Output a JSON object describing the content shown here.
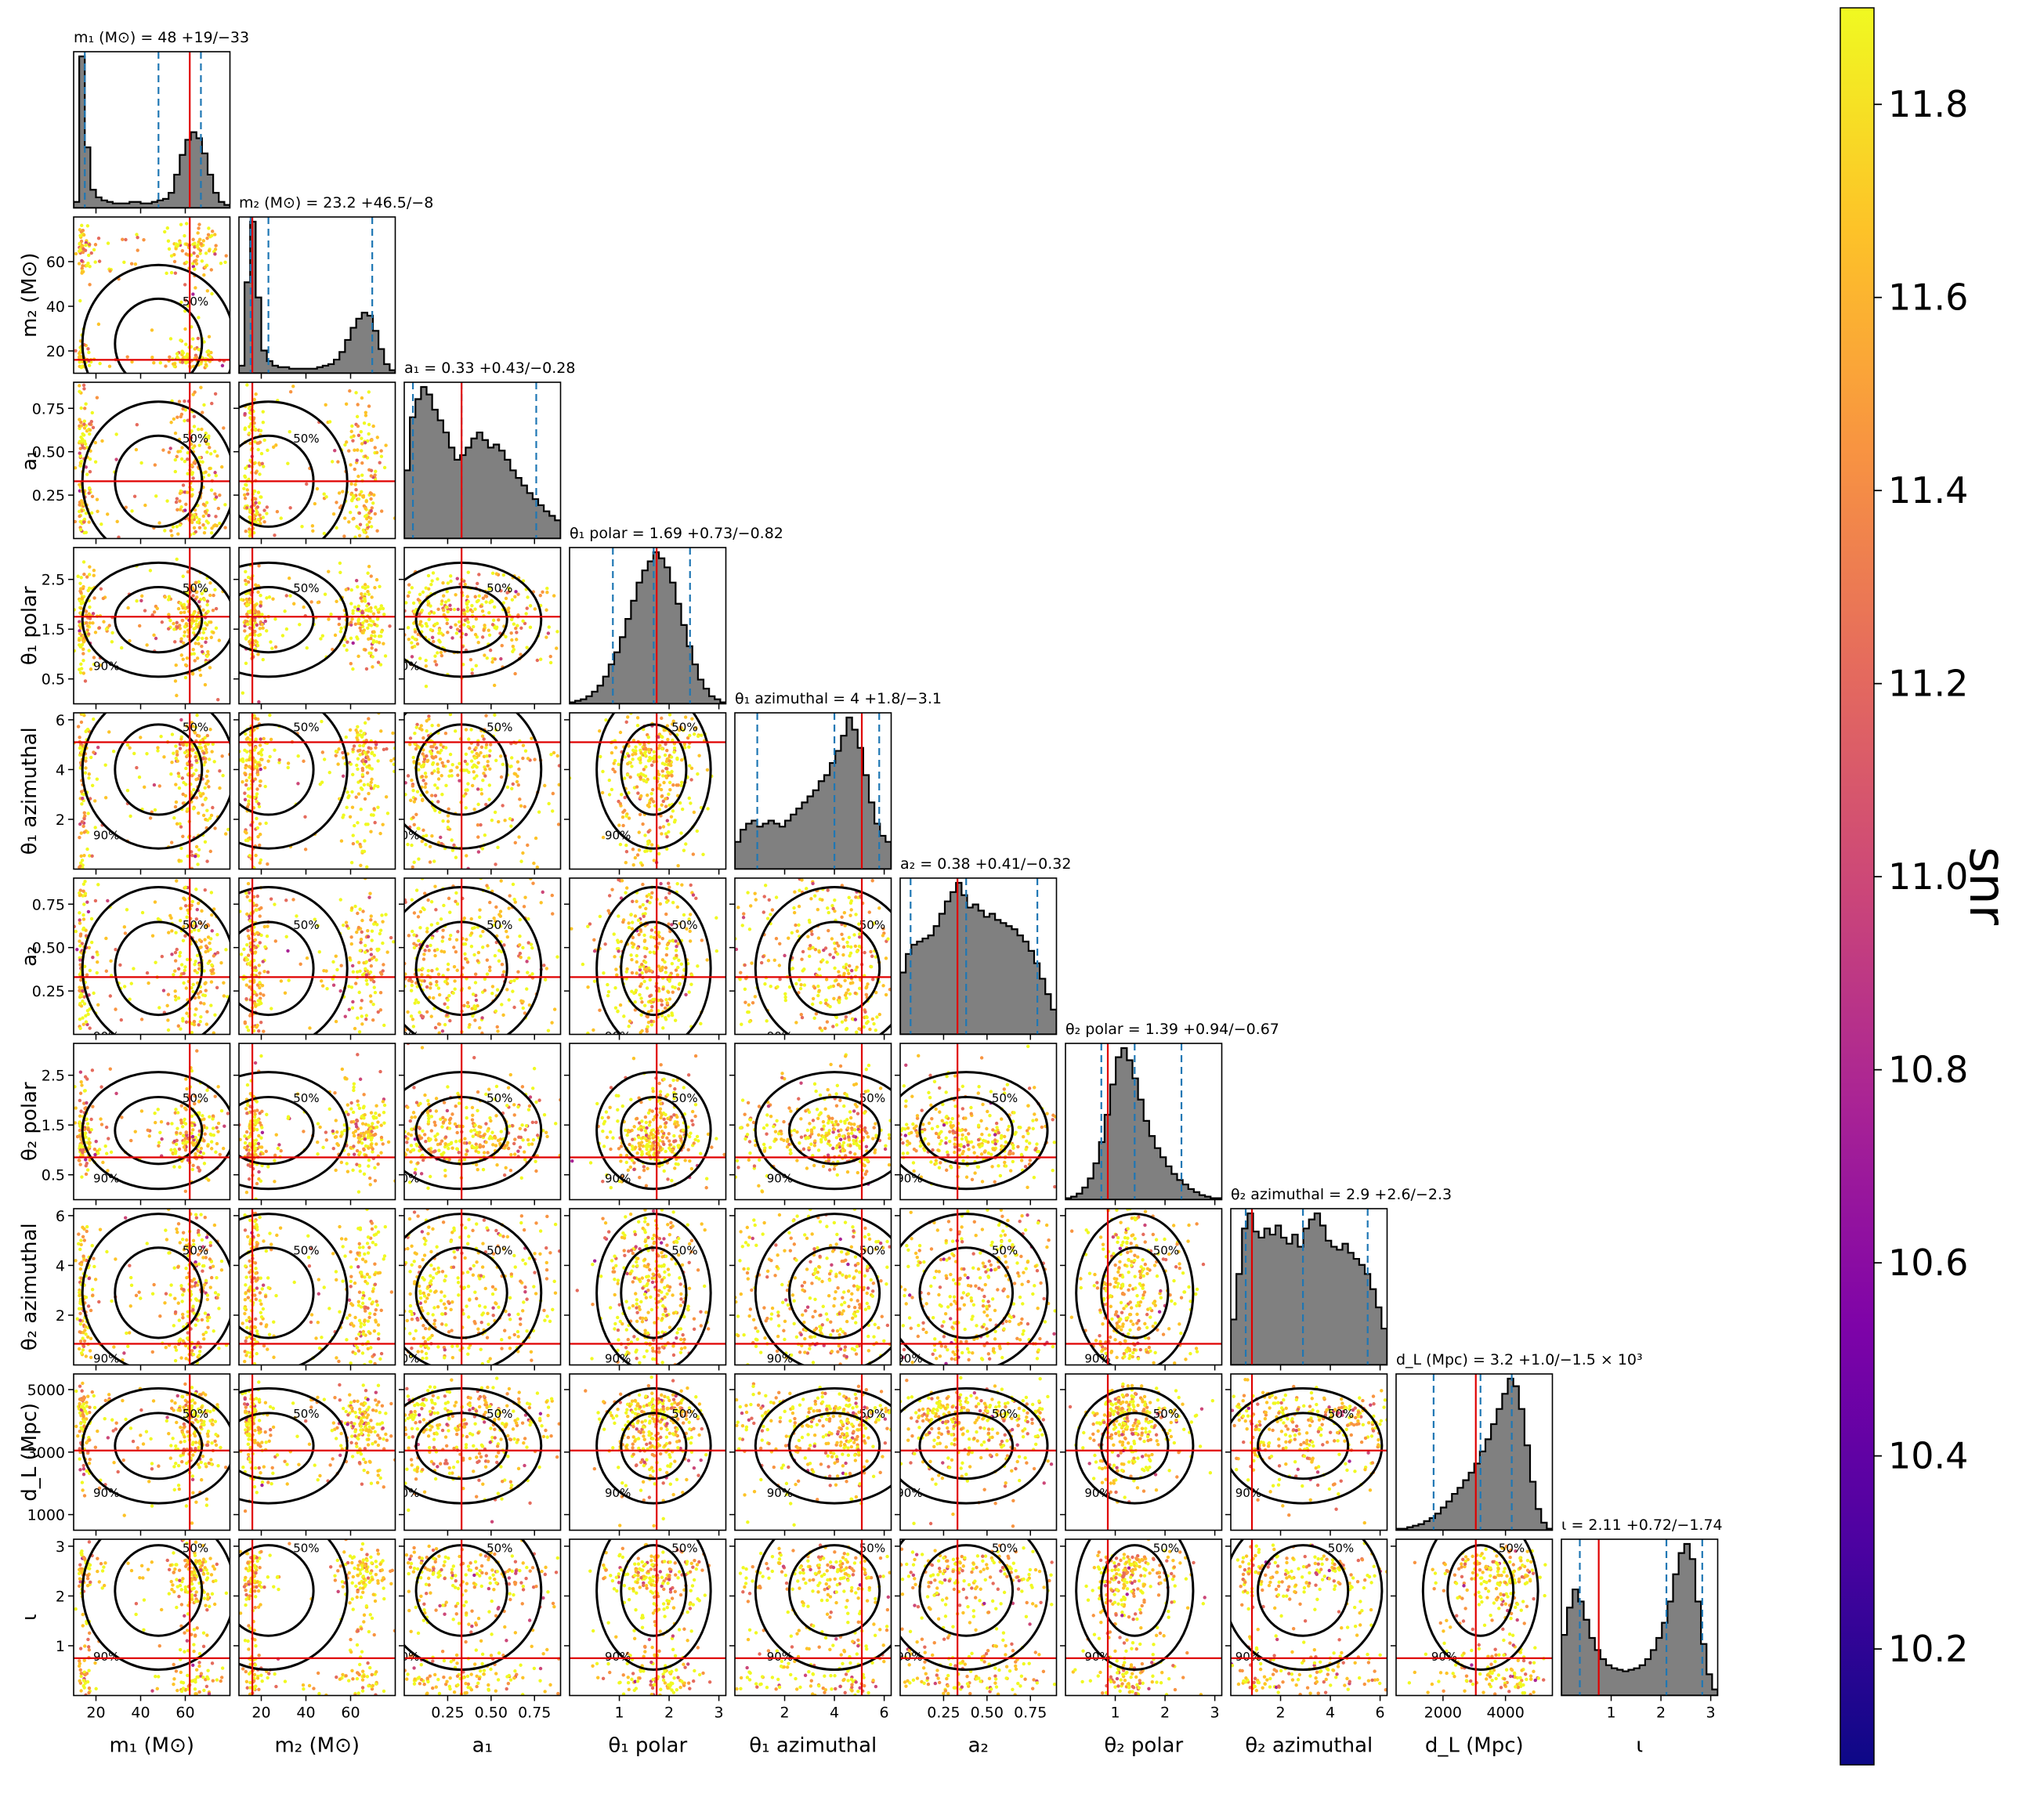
{
  "chart_data": {
    "type": "corner",
    "parameters": [
      {
        "key": "m1",
        "label": "m₁ (M⊙)",
        "xlabel": "m₁ (M⊙)",
        "title": "m₁ (M⊙) = 48 +19/−33",
        "range": [
          10,
          80
        ],
        "ticks": [
          20,
          40,
          60
        ],
        "median": 48,
        "lower": 15,
        "upper": 67,
        "truth": 62,
        "hist": [
          4,
          100,
          40,
          12,
          7,
          5,
          4,
          3,
          3,
          3,
          4,
          4,
          3,
          3,
          4,
          5,
          6,
          10,
          22,
          35,
          45,
          50,
          46,
          36,
          22,
          10,
          4,
          2
        ]
      },
      {
        "key": "m2",
        "label": "m₂ (M⊙)",
        "xlabel": "m₂ (M⊙)",
        "title": "m₂ (M⊙) = 23.2 +46.5/−8",
        "range": [
          10,
          80
        ],
        "ticks": [
          20,
          40,
          60
        ],
        "median": 23.2,
        "lower": 15.2,
        "upper": 69.7,
        "truth": 16,
        "hist": [
          5,
          60,
          100,
          50,
          15,
          8,
          5,
          4,
          4,
          3,
          3,
          3,
          3,
          3,
          4,
          5,
          6,
          9,
          14,
          22,
          30,
          36,
          40,
          38,
          28,
          16,
          6,
          2
        ]
      },
      {
        "key": "a1",
        "label": "a₁",
        "xlabel": "a₁",
        "title": "a₁ = 0.33 +0.43/−0.28",
        "range": [
          0.0,
          0.9
        ],
        "ticks": [
          0.25,
          0.5,
          0.75
        ],
        "tickLabels": [
          "0.25",
          "0.50",
          "0.75"
        ],
        "median": 0.33,
        "lower": 0.05,
        "upper": 0.76,
        "truth": 0.33,
        "hist": [
          45,
          80,
          92,
          100,
          95,
          85,
          78,
          70,
          60,
          52,
          55,
          60,
          66,
          70,
          65,
          60,
          62,
          58,
          52,
          45,
          40,
          35,
          30,
          26,
          22,
          18,
          15,
          12
        ]
      },
      {
        "key": "theta1p",
        "label": "θ₁ polar",
        "xlabel": "θ₁ polar",
        "title": "θ₁ polar = 1.69 +0.73/−0.82",
        "range": [
          0,
          3.14
        ],
        "ticks": [
          1,
          2,
          3
        ],
        "yticks": [
          0.5,
          1.5,
          2.5
        ],
        "median": 1.69,
        "lower": 0.87,
        "upper": 2.42,
        "truth": 1.75,
        "hist": [
          1,
          2,
          3,
          5,
          8,
          12,
          18,
          26,
          34,
          44,
          56,
          68,
          80,
          88,
          94,
          100,
          96,
          90,
          80,
          66,
          52,
          38,
          26,
          16,
          10,
          5,
          3,
          1
        ]
      },
      {
        "key": "theta1a",
        "label": "θ₁ azimuthal",
        "xlabel": "θ₁ azimuthal",
        "title": "θ₁ azimuthal = 4 +1.8/−3.1",
        "range": [
          0,
          6.28
        ],
        "ticks": [
          2,
          4,
          6
        ],
        "median": 4,
        "lower": 0.9,
        "upper": 5.8,
        "truth": 5.1,
        "hist": [
          18,
          26,
          30,
          32,
          28,
          30,
          32,
          30,
          28,
          32,
          36,
          40,
          44,
          48,
          52,
          58,
          62,
          70,
          78,
          88,
          100,
          92,
          80,
          62,
          44,
          30,
          22,
          18
        ]
      },
      {
        "key": "a2",
        "label": "a₂",
        "xlabel": "a₂",
        "title": "a₂ = 0.38 +0.41/−0.32",
        "range": [
          0.0,
          0.9
        ],
        "ticks": [
          0.25,
          0.5,
          0.75
        ],
        "tickLabels": [
          "0.25",
          "0.50",
          "0.75"
        ],
        "median": 0.38,
        "lower": 0.06,
        "upper": 0.79,
        "truth": 0.33,
        "hist": [
          40,
          52,
          58,
          60,
          62,
          64,
          70,
          78,
          86,
          92,
          98,
          90,
          82,
          84,
          80,
          76,
          78,
          74,
          72,
          70,
          68,
          64,
          60,
          54,
          46,
          36,
          26,
          16
        ]
      },
      {
        "key": "theta2p",
        "label": "θ₂ polar",
        "xlabel": "θ₂ polar",
        "title": "θ₂ polar = 1.39 +0.94/−0.67",
        "range": [
          0,
          3.14
        ],
        "ticks": [
          1,
          2,
          3
        ],
        "yticks": [
          0.5,
          1.5,
          2.5
        ],
        "median": 1.39,
        "lower": 0.72,
        "upper": 2.33,
        "truth": 0.85,
        "hist": [
          1,
          2,
          4,
          8,
          14,
          24,
          38,
          56,
          76,
          94,
          100,
          92,
          80,
          66,
          52,
          42,
          34,
          28,
          22,
          17,
          13,
          10,
          7,
          5,
          3,
          2,
          1,
          1
        ]
      },
      {
        "key": "theta2a",
        "label": "θ₂ azimuthal",
        "xlabel": "θ₂ azimuthal",
        "title": "θ₂ azimuthal = 2.9 +2.6/−2.3",
        "range": [
          0,
          6.28
        ],
        "ticks": [
          2,
          4,
          6
        ],
        "median": 2.9,
        "lower": 0.6,
        "upper": 5.5,
        "truth": 0.85,
        "hist": [
          30,
          60,
          90,
          100,
          88,
          84,
          90,
          86,
          92,
          84,
          80,
          86,
          78,
          90,
          96,
          100,
          92,
          82,
          78,
          76,
          80,
          74,
          70,
          66,
          60,
          50,
          38,
          24
        ]
      },
      {
        "key": "dL",
        "label": "d_L (Mpc)",
        "xlabel": "d_L (Mpc)",
        "title": "d_L (Mpc) = 3.2 +1.0/−1.5 × 10³",
        "range": [
          500,
          5500
        ],
        "ticks": [
          2000,
          4000
        ],
        "yticks": [
          1000,
          3000,
          5000
        ],
        "median": 3200,
        "lower": 1700,
        "upper": 4200,
        "truth": 3050,
        "hist": [
          1,
          1,
          2,
          3,
          4,
          6,
          8,
          11,
          15,
          19,
          24,
          28,
          33,
          38,
          44,
          52,
          60,
          70,
          80,
          90,
          100,
          95,
          80,
          56,
          32,
          14,
          5,
          1
        ]
      },
      {
        "key": "iota",
        "label": "ι",
        "xlabel": "ι",
        "title": "ι = 2.11 +0.72/−1.74",
        "range": [
          0,
          3.14
        ],
        "ticks": [
          1,
          2,
          3
        ],
        "median": 2.11,
        "lower": 0.37,
        "upper": 2.83,
        "truth": 0.75,
        "hist": [
          40,
          58,
          70,
          62,
          50,
          38,
          30,
          24,
          20,
          18,
          17,
          16,
          17,
          18,
          20,
          24,
          30,
          38,
          48,
          62,
          80,
          94,
          100,
          90,
          62,
          34,
          14,
          4
        ]
      }
    ],
    "colorbar": {
      "label": "snr",
      "range": [
        10.08,
        11.9
      ],
      "ticks": [
        10.2,
        10.4,
        10.6,
        10.8,
        11.0,
        11.2,
        11.4,
        11.6,
        11.8
      ],
      "tickLabels": [
        "10.2",
        "10.4",
        "10.6",
        "10.8",
        "11.0",
        "11.2",
        "11.4",
        "11.6",
        "11.8"
      ],
      "colormap": "plasma"
    },
    "contour_levels": [
      "50%",
      "90%"
    ],
    "colors": {
      "hist_fill": "#808080",
      "hist_edge": "#000000",
      "median": "#1f77b4",
      "truth": "#e00000",
      "contour": "#000000"
    }
  }
}
